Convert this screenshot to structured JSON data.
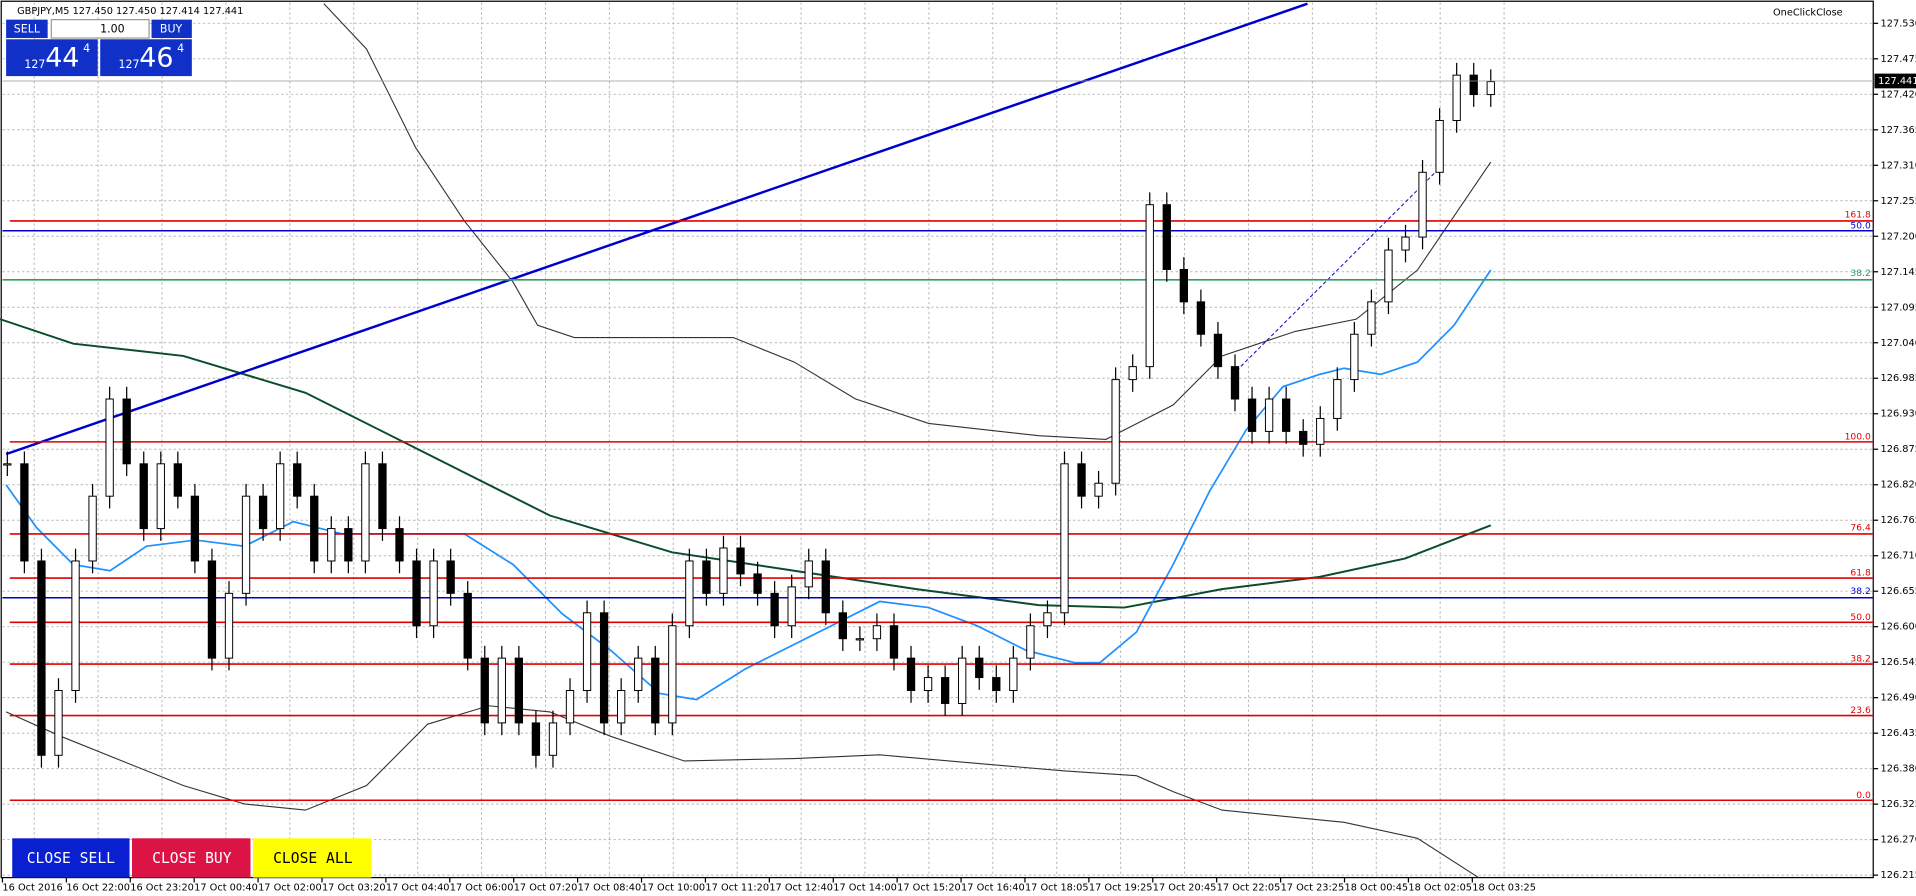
{
  "header": {
    "symbol_info": "GBPJPY,M5  127.450 127.450 127.414 127.441",
    "one_click_close": "OneClickClose"
  },
  "trade_panel": {
    "sell": "SELL",
    "lots": "1.00",
    "buy": "BUY",
    "sell_price": {
      "prefix": "127",
      "big": "44",
      "sup": "4"
    },
    "buy_price": {
      "prefix": "127",
      "big": "46",
      "sup": "4"
    }
  },
  "current_price": "127.441",
  "price_axis": [
    "127.530",
    "127.475",
    "127.420",
    "127.365",
    "127.310",
    "127.255",
    "127.200",
    "127.145",
    "127.095",
    "127.040",
    "126.985",
    "126.930",
    "126.875",
    "126.820",
    "126.765",
    "126.710",
    "126.655",
    "126.600",
    "126.545",
    "126.490",
    "126.435",
    "126.380",
    "126.325",
    "126.270",
    "126.215"
  ],
  "time_axis": [
    "16 Oct 2016",
    "16 Oct 22:00",
    "16 Oct 23:20",
    "17 Oct 00:40",
    "17 Oct 02:00",
    "17 Oct 03:20",
    "17 Oct 04:40",
    "17 Oct 06:00",
    "17 Oct 07:20",
    "17 Oct 08:40",
    "17 Oct 10:00",
    "17 Oct 11:20",
    "17 Oct 12:40",
    "17 Oct 14:00",
    "17 Oct 15:20",
    "17 Oct 16:40",
    "17 Oct 18:05",
    "17 Oct 19:25",
    "17 Oct 20:45",
    "17 Oct 22:05",
    "17 Oct 23:25",
    "18 Oct 00:45",
    "18 Oct 02:05",
    "18 Oct 03:25"
  ],
  "fib_labels": [
    "161.8",
    "50.0",
    "38.2",
    "100.0",
    "76.4",
    "61.8",
    "38.2",
    "50.0",
    "38.2",
    "23.6",
    "0.0"
  ],
  "buttons": [
    "CLOSE SELL",
    "CLOSE BUY",
    "CLOSE ALL"
  ],
  "prices": [
    126.85,
    126.7,
    126.4,
    126.5,
    126.7,
    126.8,
    126.95,
    126.85,
    126.75,
    126.85,
    126.8,
    126.7,
    126.55,
    126.65,
    126.8,
    126.75,
    126.85,
    126.8,
    126.7,
    126.75,
    126.7,
    126.85,
    126.75,
    126.7,
    126.6,
    126.7,
    126.65,
    126.55,
    126.45,
    126.55,
    126.45,
    126.4,
    126.45,
    126.5,
    126.62,
    126.45,
    126.5,
    126.55,
    126.45,
    126.6,
    126.7,
    126.65,
    126.72,
    126.68,
    126.65,
    126.6,
    126.66,
    126.7,
    126.62,
    126.58,
    126.58,
    126.6,
    126.55,
    126.5,
    126.52,
    126.48,
    126.55,
    126.52,
    126.5,
    126.55,
    126.6,
    126.62,
    126.85,
    126.8,
    126.82,
    126.98,
    127.0,
    127.25,
    127.15,
    127.1,
    127.05,
    127.0,
    126.95,
    126.9,
    126.95,
    126.9,
    126.88,
    126.92,
    126.98,
    127.05,
    127.1,
    127.18,
    127.2,
    127.3,
    127.38,
    127.45,
    127.42,
    127.44
  ]
}
